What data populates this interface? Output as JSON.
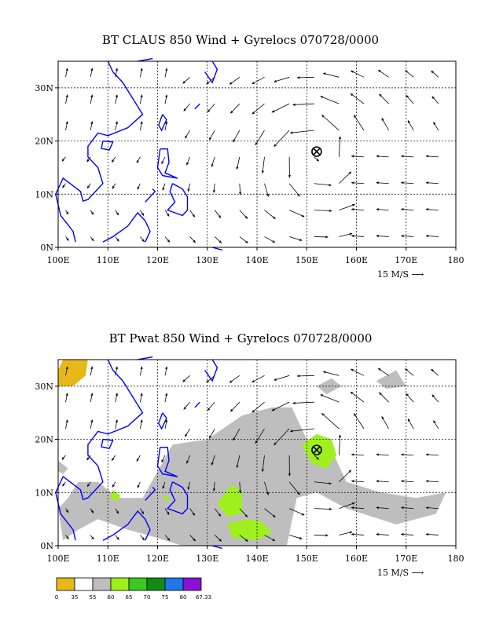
{
  "panels": [
    {
      "id": "claus",
      "title": "BT CLAUS 850 Wind + Gyrelocs 070728/0000",
      "scale_label": "15 M/S",
      "shaded": false
    },
    {
      "id": "pwat",
      "title": "BT Pwat 850 Wind + Gyrelocs 070728/0000",
      "scale_label": "15 M/S",
      "shaded": true
    }
  ],
  "axes": {
    "x_ticks": [
      "100E",
      "110E",
      "120E",
      "130E",
      "140E",
      "150E",
      "160E",
      "170E",
      "180"
    ],
    "y_ticks": [
      "0N",
      "10N",
      "20N",
      "30N"
    ],
    "lon_range": [
      100,
      180
    ],
    "lat_range": [
      0,
      35
    ]
  },
  "gyre_marker": {
    "lon": 152,
    "lat": 18,
    "symbol": "circled-x"
  },
  "legend": {
    "labels": [
      "0",
      "35",
      "55",
      "60",
      "65",
      "70",
      "75",
      "80",
      "67.33"
    ],
    "colors": [
      "#e6b818",
      "#ffffff",
      "#bebebe",
      "#9ef01a",
      "#3cc81e",
      "#138a13",
      "#1e78e6",
      "#8a10d6"
    ]
  },
  "colors": {
    "coast": "#0000ff",
    "grey_fill": "#bebebe",
    "green_fill": "#a0f020",
    "yellow_fill": "#e6b818"
  }
}
